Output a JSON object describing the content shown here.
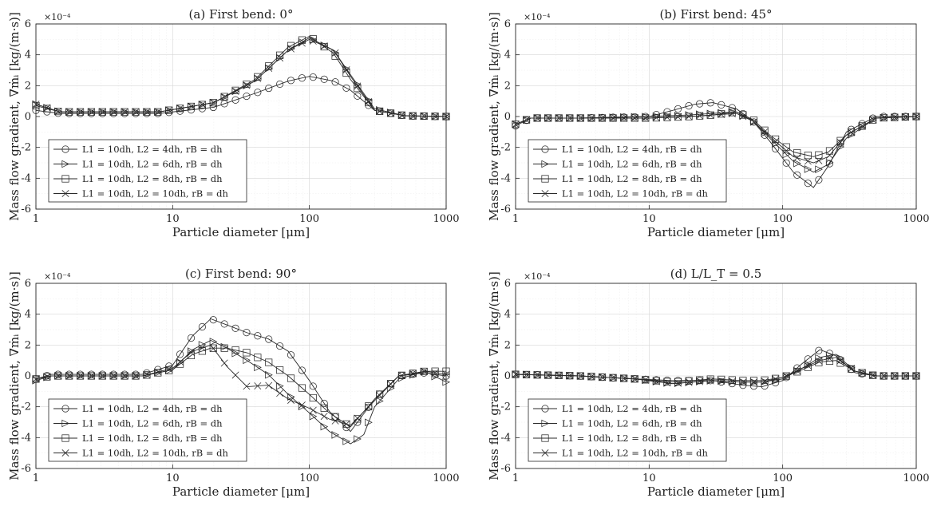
{
  "chart_data": [
    {
      "type": "line",
      "title": "(a) First bend: 0°",
      "xlabel": "Particle diameter [μm]",
      "ylabel": "Mass flow gradient, ∇ṁᵢ [kg/(m·s)]",
      "multiplier": "×10⁻⁴",
      "xscale": "log",
      "xlim": [
        1,
        1000
      ],
      "ylim": [
        -6,
        6
      ],
      "xticks": [
        "1",
        "10",
        "100",
        "1000"
      ],
      "yticks": [
        "-6",
        "-4",
        "-2",
        "0",
        "2",
        "4",
        "6"
      ],
      "grid": true,
      "legend_position": "bottom-left",
      "series": [
        {
          "name": "L1 = 10dh, L2 = 4dh, rB = dh",
          "marker": "circle",
          "x": [
            1,
            1.5,
            3,
            8,
            20,
            40,
            70,
            100,
            150,
            200,
            300,
            500,
            1000
          ],
          "y": [
            0.4,
            0.2,
            0.2,
            0.2,
            0.6,
            1.5,
            2.3,
            2.6,
            2.3,
            1.7,
            0.4,
            0.05,
            0
          ]
        },
        {
          "name": "L1 = 10dh, L2 = 6dh, rB = dh",
          "marker": "triangle-right",
          "x": [
            1,
            1.5,
            3,
            8,
            20,
            40,
            70,
            100,
            150,
            200,
            300,
            500,
            1000
          ],
          "y": [
            0.8,
            0.3,
            0.3,
            0.3,
            0.9,
            2.3,
            4.3,
            5.1,
            4.3,
            2.7,
            0.5,
            0.05,
            0
          ]
        },
        {
          "name": "L1 = 10dh, L2 = 8dh, rB = dh",
          "marker": "square",
          "x": [
            1,
            1.5,
            3,
            8,
            20,
            40,
            70,
            100,
            150,
            200,
            300,
            500,
            1000
          ],
          "y": [
            0.7,
            0.3,
            0.3,
            0.3,
            0.9,
            2.4,
            4.5,
            5.2,
            4.1,
            2.4,
            0.4,
            0.05,
            0
          ]
        },
        {
          "name": "L1 = 10dh, L2 = 10dh, rB = dh",
          "marker": "x",
          "x": [
            1,
            1.5,
            3,
            8,
            20,
            40,
            70,
            100,
            150,
            200,
            300,
            500,
            1000
          ],
          "y": [
            0.8,
            0.3,
            0.3,
            0.3,
            0.9,
            2.3,
            4.3,
            5.0,
            4.3,
            2.6,
            0.4,
            0.05,
            0
          ]
        }
      ]
    },
    {
      "type": "line",
      "title": "(b) First bend: 45°",
      "xlabel": "Particle diameter [μm]",
      "ylabel": "Mass flow gradient, ∇ṁᵢ [kg/(m·s)]",
      "multiplier": "×10⁻⁴",
      "xscale": "log",
      "xlim": [
        1,
        1000
      ],
      "ylim": [
        -6,
        6
      ],
      "xticks": [
        "1",
        "10",
        "100",
        "1000"
      ],
      "yticks": [
        "-6",
        "-4",
        "-2",
        "0",
        "2",
        "4",
        "6"
      ],
      "grid": true,
      "legend_position": "bottom-left",
      "series": [
        {
          "name": "L1 = 10dh, L2 = 4dh, rB = dh",
          "marker": "circle",
          "x": [
            1,
            1.3,
            3,
            10,
            15,
            22,
            30,
            45,
            60,
            80,
            120,
            170,
            220,
            300,
            500,
            1000
          ],
          "y": [
            -0.6,
            -0.1,
            -0.1,
            0,
            0.4,
            0.8,
            0.9,
            0.5,
            -0.3,
            -1.6,
            -3.6,
            -4.6,
            -3.2,
            -1.0,
            0,
            0
          ]
        },
        {
          "name": "L1 = 10dh, L2 = 6dh, rB = dh",
          "marker": "triangle-right",
          "x": [
            1,
            1.3,
            3,
            10,
            20,
            30,
            45,
            60,
            80,
            120,
            170,
            220,
            300,
            500,
            1000
          ],
          "y": [
            -0.5,
            -0.1,
            -0.1,
            0,
            0.1,
            0.2,
            0.3,
            -0.3,
            -1.4,
            -2.9,
            -3.6,
            -3.1,
            -1.4,
            -0.1,
            0
          ]
        },
        {
          "name": "L1 = 10dh, L2 = 8dh, rB = dh",
          "marker": "square",
          "x": [
            1,
            1.3,
            3,
            10,
            20,
            30,
            45,
            60,
            80,
            120,
            170,
            220,
            300,
            500,
            1000
          ],
          "y": [
            -0.5,
            -0.1,
            -0.1,
            -0.1,
            0,
            0.1,
            0.3,
            -0.2,
            -1.2,
            -2.3,
            -2.6,
            -2.3,
            -1.2,
            -0.1,
            0
          ]
        },
        {
          "name": "L1 = 10dh, L2 = 10dh, rB = dh",
          "marker": "x",
          "x": [
            1,
            1.3,
            3,
            10,
            20,
            30,
            45,
            60,
            80,
            120,
            170,
            220,
            300,
            500,
            1000
          ],
          "y": [
            -0.5,
            -0.1,
            -0.1,
            -0.1,
            0,
            0.1,
            0.2,
            -0.3,
            -1.3,
            -2.6,
            -3.0,
            -2.6,
            -1.2,
            -0.1,
            0
          ]
        }
      ]
    },
    {
      "type": "line",
      "title": "(c) First bend: 90°",
      "xlabel": "Particle diameter [μm]",
      "ylabel": "Mass flow gradient, ∇ṁᵢ [kg/(m·s)]",
      "multiplier": "×10⁻⁴",
      "xscale": "log",
      "xlim": [
        1,
        1000
      ],
      "ylim": [
        -6,
        6
      ],
      "xticks": [
        "1",
        "10",
        "100",
        "1000"
      ],
      "yticks": [
        "-6",
        "-4",
        "-2",
        "0",
        "2",
        "4",
        "6"
      ],
      "grid": true,
      "legend_position": "bottom-left",
      "series": [
        {
          "name": "L1 = 10dh, L2 = 4dh, rB = dh",
          "marker": "circle",
          "x": [
            1,
            1.3,
            3,
            6,
            10,
            14,
            19,
            25,
            35,
            50,
            70,
            100,
            140,
            200,
            300,
            450,
            700,
            1000
          ],
          "y": [
            -0.2,
            0.1,
            0.1,
            0.1,
            0.7,
            2.6,
            3.7,
            3.3,
            2.8,
            2.4,
            1.6,
            -0.3,
            -2.3,
            -3.6,
            -1.5,
            0,
            0.2,
            0
          ]
        },
        {
          "name": "L1 = 10dh, L2 = 6dh, rB = dh",
          "marker": "triangle-right",
          "x": [
            1,
            1.3,
            3,
            6,
            10,
            14,
            19,
            25,
            35,
            50,
            70,
            100,
            140,
            200,
            250,
            300,
            450,
            700,
            1000
          ],
          "y": [
            -0.3,
            0,
            0,
            0,
            0.4,
            1.7,
            2.3,
            1.8,
            1.0,
            0.1,
            -1.2,
            -2.4,
            -3.6,
            -4.4,
            -3.8,
            -2.0,
            -0.2,
            0.3,
            -0.4
          ]
        },
        {
          "name": "L1 = 10dh, L2 = 8dh, rB = dh",
          "marker": "square",
          "x": [
            1,
            1.3,
            3,
            6,
            10,
            14,
            19,
            25,
            35,
            50,
            70,
            100,
            140,
            200,
            300,
            450,
            700,
            1000
          ],
          "y": [
            -0.2,
            0,
            0,
            0,
            0.4,
            1.4,
            1.8,
            1.8,
            1.5,
            0.9,
            0,
            -1.2,
            -2.4,
            -3.3,
            -1.5,
            0,
            0.3,
            0.3
          ]
        },
        {
          "name": "L1 = 10dh, L2 = 10dh, rB = dh",
          "marker": "x",
          "x": [
            1,
            1.3,
            3,
            6,
            10,
            14,
            19,
            25,
            35,
            50,
            70,
            100,
            140,
            200,
            300,
            450,
            700,
            1000
          ],
          "y": [
            -0.2,
            0,
            0,
            0,
            0.5,
            1.6,
            2.0,
            0.6,
            -0.7,
            -0.6,
            -1.5,
            -2.1,
            -2.8,
            -3.2,
            -1.6,
            0,
            0.3,
            0.1
          ]
        }
      ]
    },
    {
      "type": "line",
      "title": "(d) L/L_T = 0.5",
      "xlabel": "Particle diameter [μm]",
      "ylabel": "Mass flow gradient, ∇ṁᵢ [kg/(m·s)]",
      "multiplier": "×10⁻⁴",
      "xscale": "log",
      "xlim": [
        1,
        1000
      ],
      "ylim": [
        -6,
        6
      ],
      "xticks": [
        "1",
        "10",
        "100",
        "1000"
      ],
      "yticks": [
        "-6",
        "-4",
        "-2",
        "0",
        "2",
        "4",
        "6"
      ],
      "grid": true,
      "legend_position": "bottom-left",
      "series": [
        {
          "name": "L1 = 10dh, L2 = 4dh, rB = dh",
          "marker": "circle",
          "x": [
            1,
            3,
            8,
            15,
            30,
            50,
            70,
            100,
            140,
            190,
            250,
            350,
            500,
            1000
          ],
          "y": [
            0.1,
            0,
            -0.2,
            -0.3,
            -0.3,
            -0.6,
            -0.7,
            -0.3,
            0.8,
            1.7,
            1.3,
            0.2,
            0,
            0
          ]
        },
        {
          "name": "L1 = 10dh, L2 = 6dh, rB = dh",
          "marker": "triangle-right",
          "x": [
            1,
            3,
            8,
            15,
            30,
            50,
            70,
            100,
            140,
            190,
            250,
            350,
            500,
            1000
          ],
          "y": [
            0.1,
            0,
            -0.2,
            -0.5,
            -0.3,
            -0.4,
            -0.4,
            -0.2,
            0.5,
            1.2,
            1.4,
            0.3,
            0,
            0
          ]
        },
        {
          "name": "L1 = 10dh, L2 = 8dh, rB = dh",
          "marker": "square",
          "x": [
            1,
            3,
            8,
            15,
            30,
            50,
            70,
            100,
            140,
            190,
            250,
            350,
            500,
            1000
          ],
          "y": [
            0.1,
            0,
            -0.2,
            -0.4,
            -0.2,
            -0.3,
            -0.3,
            -0.1,
            0.4,
            0.9,
            1.0,
            0.3,
            0,
            0
          ]
        },
        {
          "name": "L1 = 10dh, L2 = 10dh, rB = dh",
          "marker": "x",
          "x": [
            1,
            3,
            8,
            15,
            30,
            50,
            70,
            100,
            140,
            190,
            250,
            350,
            500,
            1000
          ],
          "y": [
            0.1,
            0,
            -0.2,
            -0.5,
            -0.3,
            -0.4,
            -0.4,
            -0.1,
            0.5,
            1.0,
            1.2,
            0.3,
            0,
            0
          ]
        }
      ]
    }
  ]
}
